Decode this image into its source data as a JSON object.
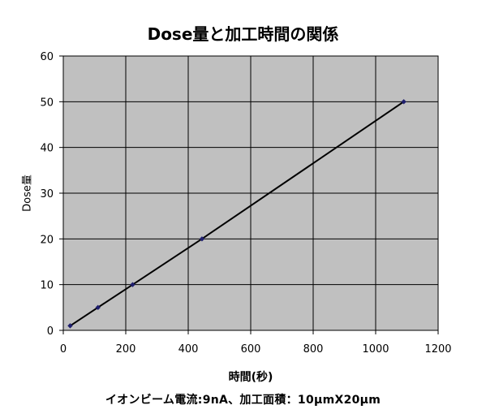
{
  "chart_data": {
    "type": "scatter",
    "title": "Dose量と加工時間の関係",
    "xlabel": "時間(秒)",
    "ylabel": "Dose量",
    "caption": "イオンビーム電流:9nA、加工面積：10μmX20μm",
    "xlim": [
      0,
      1200
    ],
    "ylim": [
      0,
      60
    ],
    "xticks": [
      0,
      200,
      400,
      600,
      800,
      1000,
      1200
    ],
    "yticks": [
      0,
      10,
      20,
      30,
      40,
      50,
      60
    ],
    "grid": true,
    "plot_background": "#c0c0c0",
    "series": [
      {
        "points": [
          {
            "x": 22,
            "y": 1
          },
          {
            "x": 111,
            "y": 5
          },
          {
            "x": 222,
            "y": 10
          },
          {
            "x": 444,
            "y": 20
          },
          {
            "x": 1090,
            "y": 50
          }
        ],
        "marker_color": "#1f1f6e",
        "line_color": "#000000",
        "connected": true
      }
    ]
  }
}
